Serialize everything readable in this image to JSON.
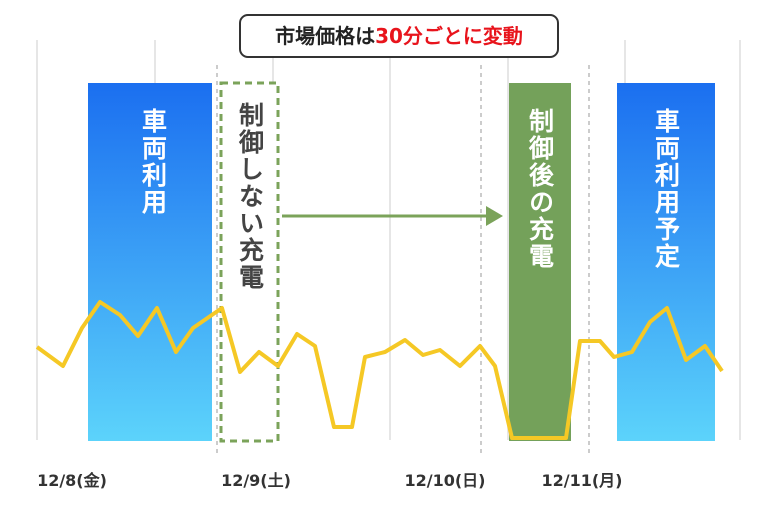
{
  "header": {
    "title_prefix": "市場価格は",
    "title_highlight": "30分ごとに変動"
  },
  "blocks": {
    "vehicle_use": "車両利用",
    "uncontrolled_charge": "制御しない充電",
    "controlled_charge": "制御後の充電",
    "vehicle_use_planned": "車両利用予定"
  },
  "dates": [
    "12/8(金)",
    "12/9(土)",
    "12/10(日)",
    "12/11(月)"
  ]
}
